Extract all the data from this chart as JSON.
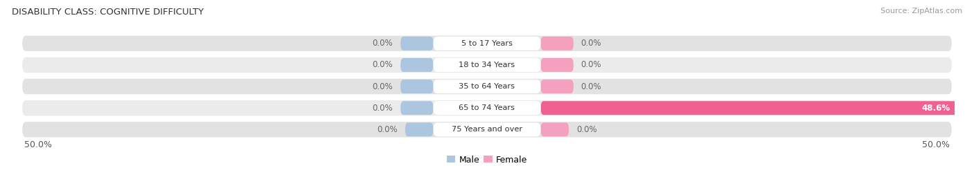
{
  "title": "DISABILITY CLASS: COGNITIVE DIFFICULTY",
  "source": "Source: ZipAtlas.com",
  "categories": [
    "5 to 17 Years",
    "18 to 34 Years",
    "35 to 64 Years",
    "65 to 74 Years",
    "75 Years and over"
  ],
  "male_values": [
    0.0,
    0.0,
    0.0,
    0.0,
    0.0
  ],
  "female_values": [
    0.0,
    0.0,
    0.0,
    48.6,
    0.0
  ],
  "male_display": [
    3.5,
    3.5,
    3.5,
    3.5,
    3.0
  ],
  "female_display": [
    3.5,
    3.5,
    3.5,
    48.6,
    3.0
  ],
  "male_color": "#adc6e0",
  "female_color": "#f5a0bf",
  "female_color_highlight": "#f06090",
  "bar_bg_color": "#e2e2e2",
  "bar_bg_color2": "#ebebeb",
  "xlim": [
    -50,
    50
  ],
  "x_left_label": "50.0%",
  "x_right_label": "50.0%",
  "background_color": "#ffffff",
  "value_label_color": "#666666",
  "center_label_color": "#333333",
  "highlight_value_color": "#ffffff"
}
